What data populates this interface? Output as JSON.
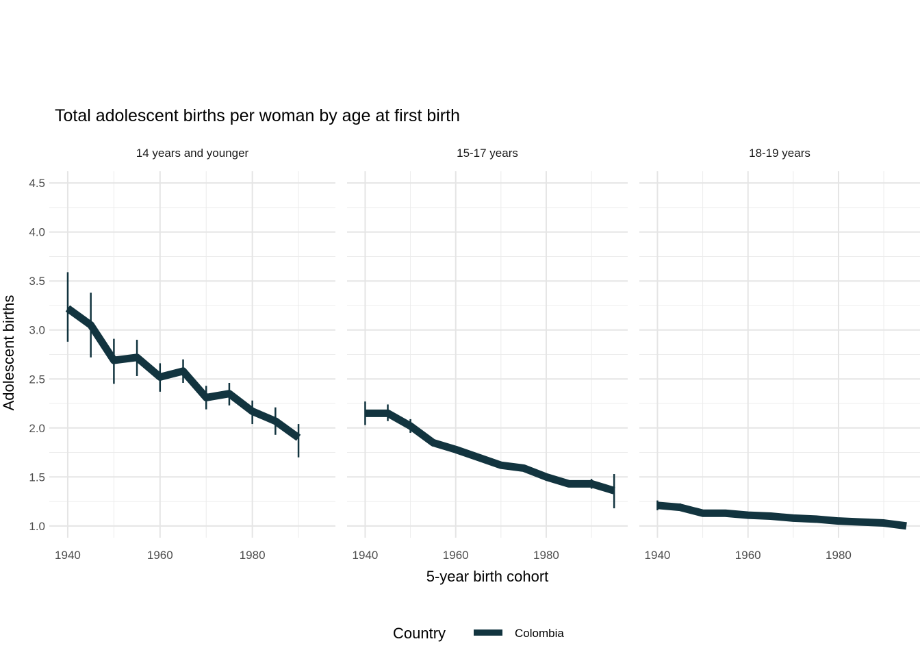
{
  "chart_data": {
    "type": "line",
    "title": "Total adolescent births per woman by age at first birth",
    "xlabel": "5-year birth cohort",
    "ylabel": "Adolescent births",
    "xlim": [
      1936,
      1998
    ],
    "ylim": [
      0.88,
      4.62
    ],
    "x_ticks": [
      1940,
      1960,
      1980
    ],
    "y_ticks": [
      1.0,
      1.5,
      2.0,
      2.5,
      3.0,
      3.5,
      4.0,
      4.5
    ],
    "y_tick_labels": [
      "1.0",
      "1.5",
      "2.0",
      "2.5",
      "3.0",
      "3.5",
      "4.0",
      "4.5"
    ],
    "grid": true,
    "line_color": "#12343f",
    "legend": {
      "title": "Country",
      "position": "bottom",
      "entries": [
        "Colombia"
      ]
    },
    "panels": [
      {
        "label": "14 years and younger",
        "series": [
          {
            "name": "Colombia",
            "x": [
              1940,
              1945,
              1950,
              1955,
              1960,
              1965,
              1970,
              1975,
              1980,
              1985,
              1990
            ],
            "y": [
              3.22,
              3.05,
              2.69,
              2.72,
              2.52,
              2.58,
              2.31,
              2.35,
              2.17,
              2.07,
              1.9
            ],
            "lower": [
              2.88,
              2.72,
              2.45,
              2.53,
              2.37,
              2.46,
              2.19,
              2.23,
              2.04,
              1.93,
              1.7
            ],
            "upper": [
              3.59,
              3.38,
              2.91,
              2.9,
              2.66,
              2.7,
              2.43,
              2.46,
              2.28,
              2.21,
              2.04
            ]
          }
        ]
      },
      {
        "label": "15-17 years",
        "series": [
          {
            "name": "Colombia",
            "x": [
              1940,
              1945,
              1950,
              1955,
              1960,
              1965,
              1970,
              1975,
              1980,
              1985,
              1990,
              1995
            ],
            "y": [
              2.15,
              2.15,
              2.02,
              1.85,
              1.78,
              1.7,
              1.62,
              1.59,
              1.5,
              1.43,
              1.43,
              1.36
            ],
            "lower": [
              2.03,
              2.07,
              1.95,
              1.81,
              null,
              null,
              null,
              null,
              null,
              null,
              1.38,
              1.18
            ],
            "upper": [
              2.27,
              2.24,
              2.09,
              1.89,
              null,
              null,
              null,
              null,
              null,
              null,
              1.48,
              1.53
            ]
          }
        ]
      },
      {
        "label": "18-19 years",
        "series": [
          {
            "name": "Colombia",
            "x": [
              1940,
              1945,
              1950,
              1955,
              1960,
              1965,
              1970,
              1975,
              1980,
              1985,
              1990,
              1995
            ],
            "y": [
              1.21,
              1.19,
              1.13,
              1.13,
              1.11,
              1.1,
              1.08,
              1.07,
              1.05,
              1.04,
              1.03,
              1.0
            ],
            "lower": [
              1.16,
              1.16,
              null,
              null,
              null,
              null,
              null,
              null,
              null,
              null,
              null,
              null
            ],
            "upper": [
              1.26,
              1.23,
              null,
              null,
              null,
              null,
              null,
              null,
              null,
              null,
              null,
              null
            ]
          }
        ]
      }
    ]
  }
}
